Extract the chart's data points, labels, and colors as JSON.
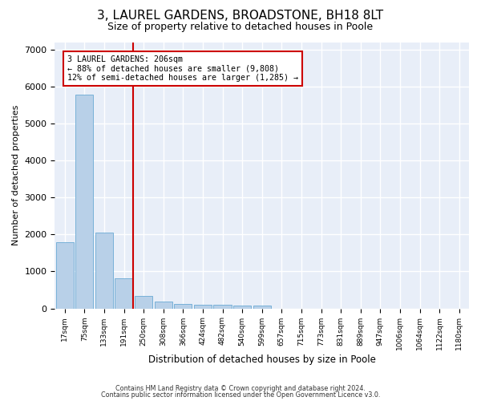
{
  "title": "3, LAUREL GARDENS, BROADSTONE, BH18 8LT",
  "subtitle": "Size of property relative to detached houses in Poole",
  "xlabel": "Distribution of detached houses by size in Poole",
  "ylabel": "Number of detached properties",
  "footer_line1": "Contains HM Land Registry data © Crown copyright and database right 2024.",
  "footer_line2": "Contains public sector information licensed under the Open Government Licence v3.0.",
  "bar_labels": [
    "17sqm",
    "75sqm",
    "133sqm",
    "191sqm",
    "250sqm",
    "308sqm",
    "366sqm",
    "424sqm",
    "482sqm",
    "540sqm",
    "599sqm",
    "657sqm",
    "715sqm",
    "773sqm",
    "831sqm",
    "889sqm",
    "947sqm",
    "1006sqm",
    "1064sqm",
    "1122sqm",
    "1180sqm"
  ],
  "bar_values": [
    1780,
    5780,
    2060,
    820,
    340,
    185,
    120,
    100,
    95,
    85,
    85,
    0,
    0,
    0,
    0,
    0,
    0,
    0,
    0,
    0,
    0
  ],
  "bar_color": "#b8d0e8",
  "bar_edgecolor": "#6aaad4",
  "vline_color": "#cc0000",
  "annotation_line1": "3 LAUREL GARDENS: 206sqm",
  "annotation_line2": "← 88% of detached houses are smaller (9,808)",
  "annotation_line3": "12% of semi-detached houses are larger (1,285) →",
  "ylim": [
    0,
    7200
  ],
  "yticks": [
    0,
    1000,
    2000,
    3000,
    4000,
    5000,
    6000,
    7000
  ],
  "background_color": "#e8eef8",
  "grid_color": "#ffffff",
  "title_fontsize": 11,
  "subtitle_fontsize": 9,
  "vline_bar_index": 3
}
